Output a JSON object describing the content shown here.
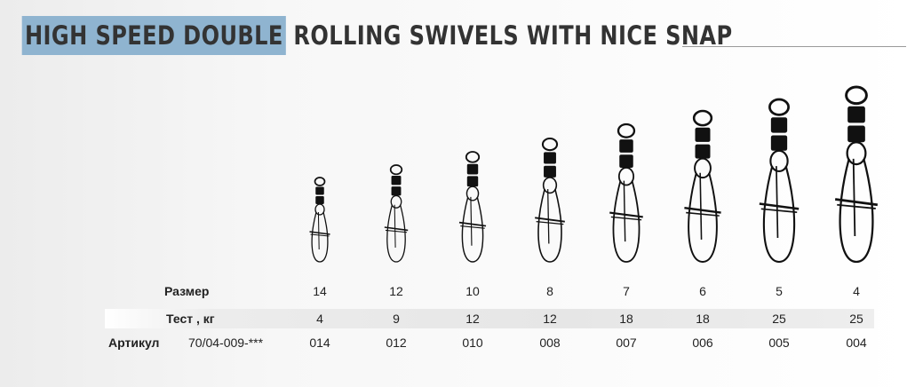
{
  "title": {
    "highlight": "HIGH SPEED DOUBLE",
    "rest": "ROLLING SWIVELS WITH NICE SNAP"
  },
  "colors": {
    "highlight": "#8fb4d0",
    "text": "#333333",
    "metal": "#111111"
  },
  "table": {
    "size_label": "Размер",
    "test_label": "Тест , кг",
    "article_label": "Артикул",
    "article_code": "70/04-009-***",
    "columns": [
      {
        "size": "14",
        "test": "4",
        "article": "014"
      },
      {
        "size": "12",
        "test": "9",
        "article": "012"
      },
      {
        "size": "10",
        "test": "12",
        "article": "010"
      },
      {
        "size": "8",
        "test": "12",
        "article": "008"
      },
      {
        "size": "7",
        "test": "18",
        "article": "007"
      },
      {
        "size": "6",
        "test": "18",
        "article": "006"
      },
      {
        "size": "5",
        "test": "25",
        "article": "005"
      },
      {
        "size": "4",
        "test": "25",
        "article": "004"
      }
    ]
  }
}
